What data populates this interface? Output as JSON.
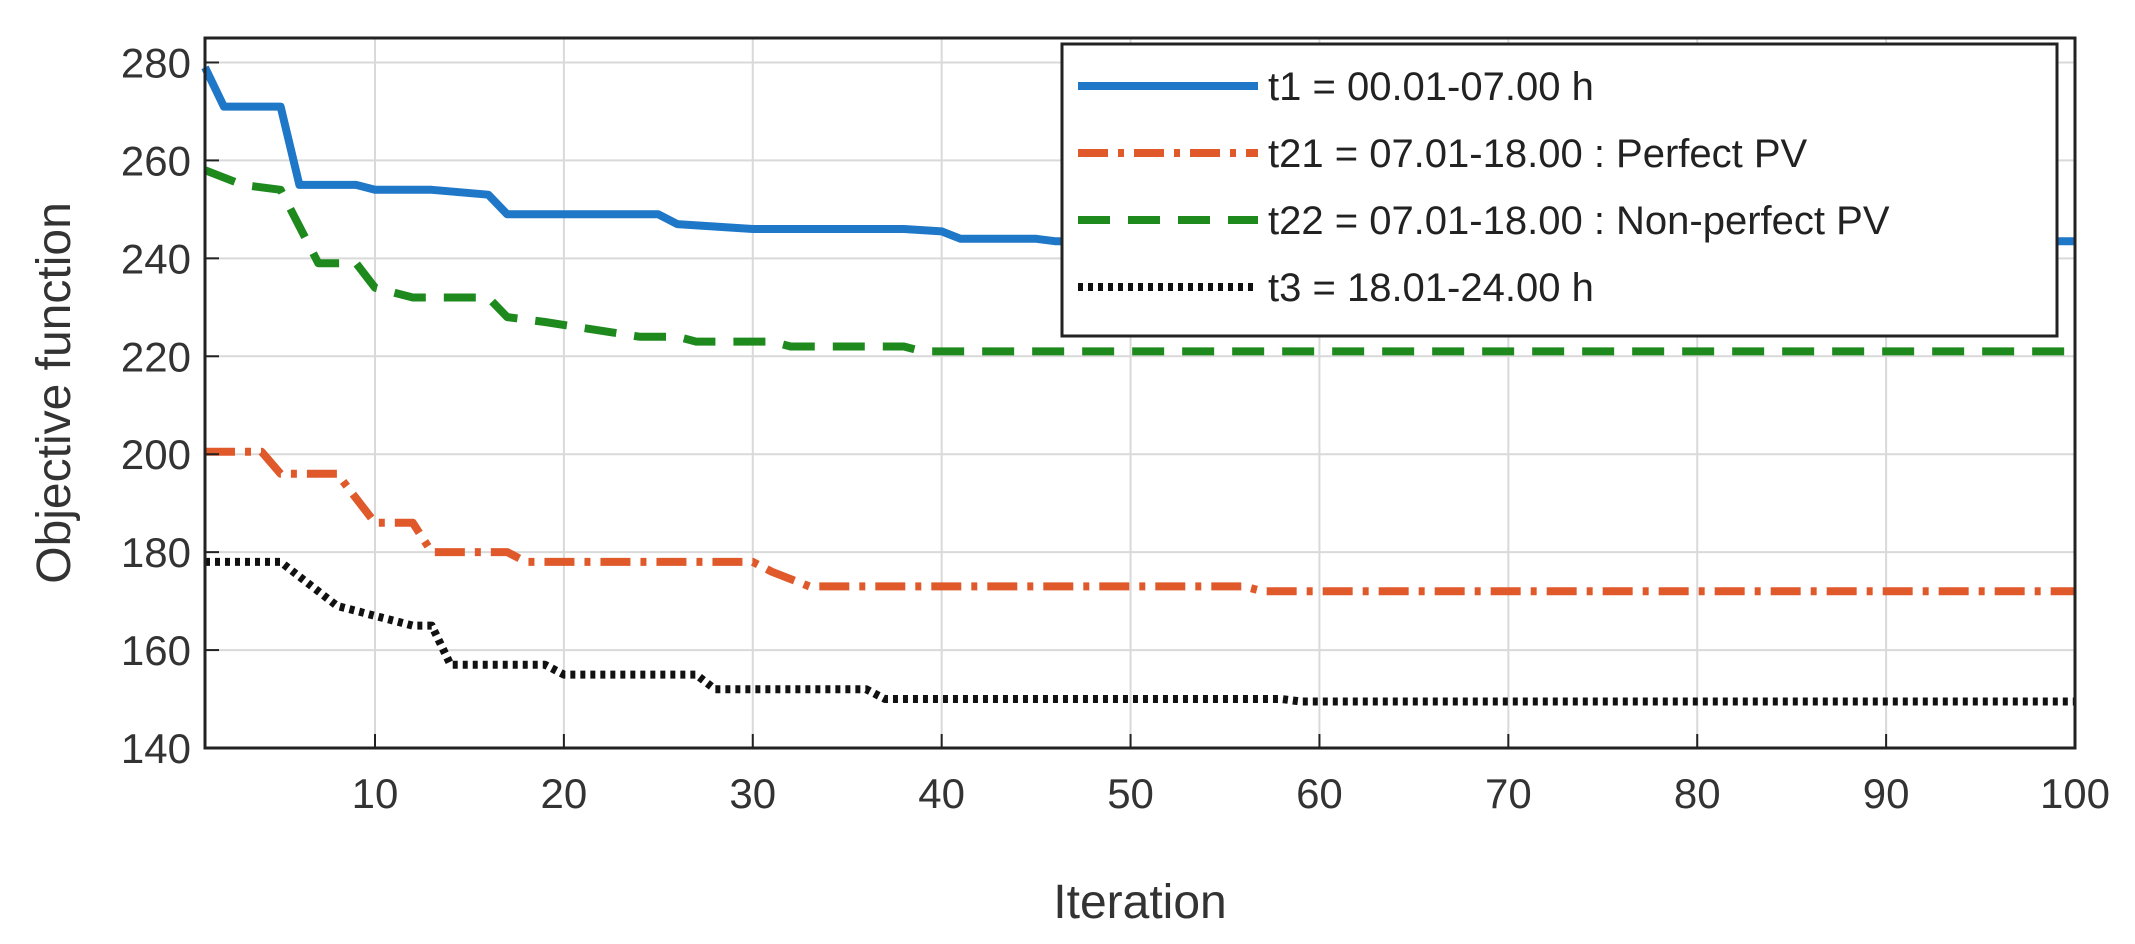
{
  "chart_data": {
    "type": "line",
    "title": "",
    "xlabel": "Iteration",
    "ylabel": "Objective function",
    "xlim": [
      1,
      100
    ],
    "ylim": [
      140,
      285
    ],
    "xticks": [
      10,
      20,
      30,
      40,
      50,
      60,
      70,
      80,
      90,
      100
    ],
    "yticks": [
      140,
      160,
      180,
      200,
      220,
      240,
      260,
      280
    ],
    "grid": true,
    "legend_position": "top-right",
    "series": [
      {
        "name": "t1 = 00.01-07.00 h",
        "color": "#1f77c8",
        "style": "solid",
        "points": [
          [
            1,
            279
          ],
          [
            2,
            271
          ],
          [
            5,
            271
          ],
          [
            6,
            255
          ],
          [
            9,
            255
          ],
          [
            10,
            254
          ],
          [
            13,
            254
          ],
          [
            16,
            253
          ],
          [
            17,
            249
          ],
          [
            25,
            249
          ],
          [
            26,
            247
          ],
          [
            30,
            246
          ],
          [
            38,
            246
          ],
          [
            40,
            245.5
          ],
          [
            41,
            244
          ],
          [
            45,
            244
          ],
          [
            46,
            243.5
          ],
          [
            100,
            243.5
          ]
        ]
      },
      {
        "name": "t21 = 07.01-18.00 : Perfect PV",
        "color": "#e0592b",
        "style": "dashdot",
        "points": [
          [
            1,
            200.5
          ],
          [
            4,
            200.5
          ],
          [
            5,
            196
          ],
          [
            8,
            196
          ],
          [
            10,
            186
          ],
          [
            12,
            186
          ],
          [
            13,
            180
          ],
          [
            17,
            180
          ],
          [
            18,
            178
          ],
          [
            30,
            178
          ],
          [
            31,
            176
          ],
          [
            33,
            173
          ],
          [
            56,
            173
          ],
          [
            57,
            172
          ],
          [
            100,
            172
          ]
        ]
      },
      {
        "name": "t22 = 07.01-18.00 : Non-perfect PV",
        "color": "#1e8a1e",
        "style": "dashed",
        "points": [
          [
            1,
            258
          ],
          [
            3,
            255
          ],
          [
            5,
            254
          ],
          [
            7,
            239
          ],
          [
            9,
            239
          ],
          [
            10,
            234
          ],
          [
            12,
            232
          ],
          [
            16,
            232
          ],
          [
            17,
            228
          ],
          [
            19,
            227
          ],
          [
            24,
            224
          ],
          [
            26,
            224
          ],
          [
            27,
            223
          ],
          [
            31,
            223
          ],
          [
            32,
            222
          ],
          [
            38,
            222
          ],
          [
            39,
            221
          ],
          [
            100,
            221
          ]
        ]
      },
      {
        "name": "t3 = 18.01-24.00 h",
        "color": "#111111",
        "style": "dotted",
        "points": [
          [
            1,
            178
          ],
          [
            5,
            178
          ],
          [
            6,
            175
          ],
          [
            8,
            169
          ],
          [
            10,
            167
          ],
          [
            11,
            166
          ],
          [
            12,
            165
          ],
          [
            13,
            165
          ],
          [
            14,
            157
          ],
          [
            19,
            157
          ],
          [
            20,
            155
          ],
          [
            27,
            155
          ],
          [
            28,
            152
          ],
          [
            36,
            152
          ],
          [
            37,
            150
          ],
          [
            58,
            150
          ],
          [
            59,
            149.5
          ],
          [
            100,
            149.5
          ]
        ]
      }
    ]
  }
}
